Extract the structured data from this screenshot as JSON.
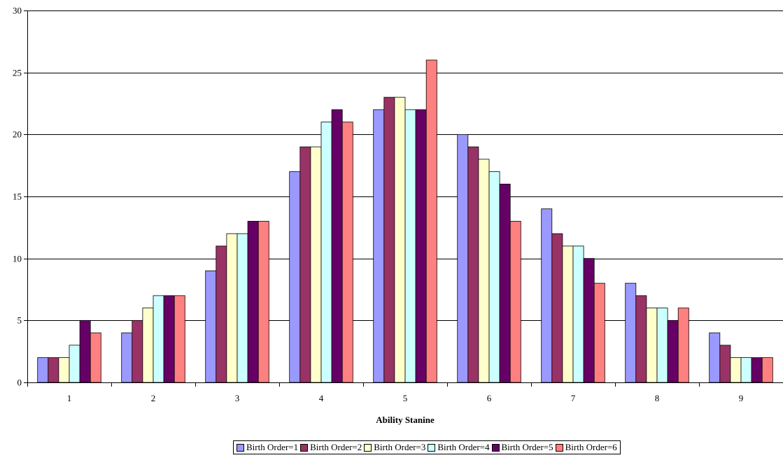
{
  "chart_data": {
    "type": "bar",
    "title": "",
    "xlabel": "Ability Stanine",
    "ylabel": "",
    "categories": [
      "1",
      "2",
      "3",
      "4",
      "5",
      "6",
      "7",
      "8",
      "9"
    ],
    "ylim": [
      0,
      30
    ],
    "yticks": [
      0,
      5,
      10,
      15,
      20,
      25,
      30
    ],
    "grid": true,
    "legend_position": "bottom",
    "series": [
      {
        "name": "Birth Order=1",
        "color": "#9999FF",
        "values": [
          2,
          4,
          9,
          17,
          22,
          20,
          14,
          8,
          4
        ]
      },
      {
        "name": "Birth Order=2",
        "color": "#993366",
        "values": [
          2,
          5,
          11,
          19,
          23,
          19,
          12,
          7,
          3
        ]
      },
      {
        "name": "Birth Order=3",
        "color": "#FFFFCC",
        "values": [
          2,
          6,
          12,
          19,
          23,
          18,
          11,
          6,
          2
        ]
      },
      {
        "name": "Birth Order=4",
        "color": "#CCFFFF",
        "values": [
          3,
          7,
          12,
          21,
          22,
          17,
          11,
          6,
          2
        ]
      },
      {
        "name": "Birth Order=5",
        "color": "#660066",
        "values": [
          5,
          7,
          13,
          22,
          22,
          16,
          10,
          5,
          2
        ]
      },
      {
        "name": "Birth Order=6",
        "color": "#FF8080",
        "values": [
          4,
          7,
          13,
          21,
          26,
          13,
          8,
          6,
          2
        ]
      }
    ]
  }
}
